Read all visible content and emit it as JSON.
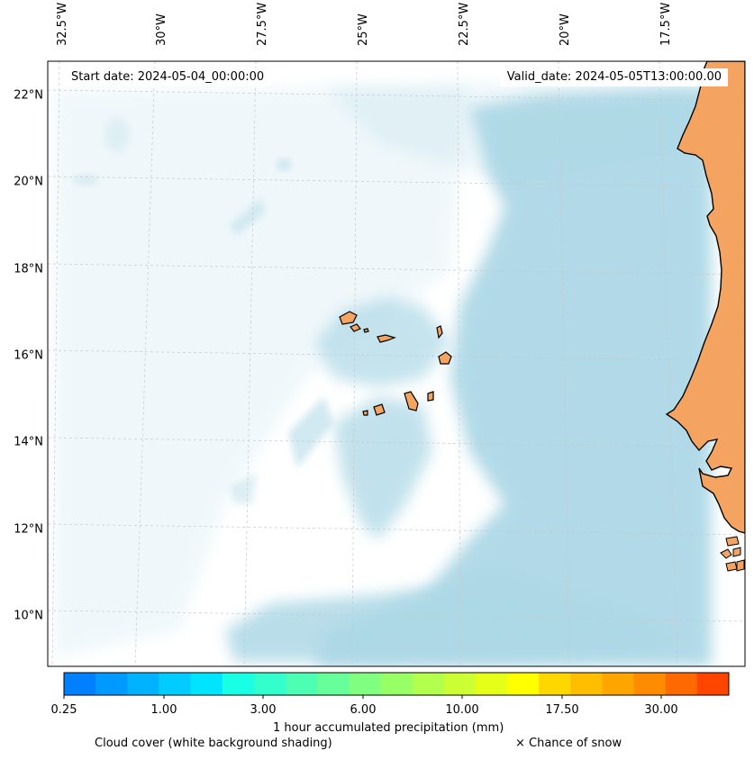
{
  "map": {
    "start_date": "Start date: 2024-05-04_00:00:00",
    "valid_date": "Valid_date: 2024-05-05T13:00:00.00",
    "lon_ticks": [
      "32.5°W",
      "30°W",
      "27.5°W",
      "25°W",
      "22.5°W",
      "20°W",
      "17.5°W"
    ],
    "lat_ticks": [
      "22°N",
      "20°N",
      "18°N",
      "16°N",
      "14°N",
      "12°N",
      "10°N"
    ],
    "colors": {
      "land": "#f4a460",
      "cloud": "#add8e6",
      "coast": "#000000",
      "grid": "#c8c8c8"
    }
  },
  "colorbar": {
    "tick_labels": [
      "0.25",
      "1.00",
      "3.00",
      "6.00",
      "10.00",
      "17.50",
      "30.00"
    ],
    "colors": [
      "#0080ff",
      "#0099ff",
      "#00b2ff",
      "#00ccff",
      "#00e5ff",
      "#19ffe5",
      "#33ffcc",
      "#4dffb2",
      "#66ff99",
      "#80ff80",
      "#99ff66",
      "#b2ff4d",
      "#ccff33",
      "#e5ff19",
      "#ffff00",
      "#ffd700",
      "#ffbf00",
      "#ffa500",
      "#ff8c00",
      "#ff6a00",
      "#ff4500"
    ],
    "label": "1 hour accumulated precipitation (mm)"
  },
  "legend": {
    "cloud_cover": "Cloud cover (white background shading)",
    "snow": "× Chance of snow"
  }
}
